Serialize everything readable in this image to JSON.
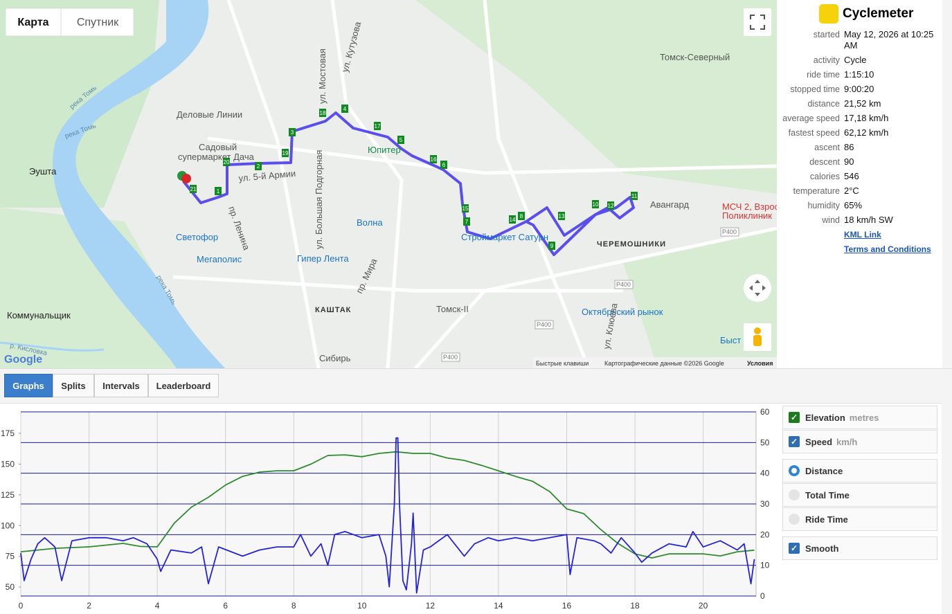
{
  "map": {
    "map_types": [
      "Карта",
      "Спутник"
    ],
    "labels": [
      "Деловые Линии",
      "Садовый",
      "супермаркет Дача",
      "Эушта",
      "Юпитер",
      "Томск-Северный",
      "Авангард",
      "МСЧ 2, Взрос",
      "Поликлиник",
      "Волна",
      "Светофор",
      "Мегаполис",
      "Гипер Лента",
      "Строймаркет Сатурн",
      "ЧЕРЕМОШНИКИ",
      "КАШТАК",
      "Томск-II",
      "Октябрьский рынок",
      "Коммунальщик",
      "Сибирь",
      "Быст",
      "р. Кисловка",
      "река Томь",
      "река Томь",
      "река Томь",
      "ул. Мостовая",
      "ул. Кутузова",
      "ул. Большая Подгорная",
      "пр. Мира",
      "ул. 5-й Армии",
      "пр. Ленина",
      "ул. Клюева",
      "P400",
      "P400",
      "P400",
      "P400",
      "P400"
    ],
    "markers": [
      "18",
      "4",
      "3",
      "17",
      "5",
      "19",
      "16",
      "6",
      "20",
      "2",
      "21",
      "1",
      "15",
      "7",
      "14",
      "8",
      "13",
      "9",
      "10",
      "12",
      "11"
    ],
    "footer": [
      "Google",
      "Быстрые клавиши",
      "Картографические данные ©2026 Google",
      "Условия"
    ]
  },
  "info": {
    "title": "Cyclemeter",
    "rows": [
      [
        "started",
        "May 12, 2026 at 10:25 AM"
      ],
      [
        "activity",
        "Cycle"
      ],
      [
        "ride time",
        "1:15:10"
      ],
      [
        "stopped time",
        "9:00:20"
      ],
      [
        "distance",
        "21,52 km"
      ],
      [
        "average speed",
        "17,18 km/h"
      ],
      [
        "fastest speed",
        "62,12 km/h"
      ],
      [
        "ascent",
        "86"
      ],
      [
        "descent",
        "90"
      ],
      [
        "calories",
        "546"
      ],
      [
        "temperature",
        "2°C"
      ],
      [
        "humidity",
        "65%"
      ],
      [
        "wind",
        "18 km/h SW"
      ]
    ],
    "links": [
      "KML Link",
      "Terms and Conditions"
    ]
  },
  "tabs": [
    "Graphs",
    "Splits",
    "Intervals",
    "Leaderboard"
  ],
  "controls": {
    "units": [
      "metres",
      "km/h"
    ],
    "x_axis_options": [
      "Distance",
      "Total Time",
      "Ride Time"
    ],
    "smooth": "Smooth"
  },
  "chart_data": {
    "type": "line",
    "xlim": [
      0,
      21.55
    ],
    "xticks": [
      0,
      2,
      4,
      6,
      8,
      10,
      12,
      14,
      16,
      18,
      20
    ],
    "ylim": [
      42.7,
      192.5
    ],
    "yticks": [
      50,
      75,
      100,
      125,
      150,
      175
    ],
    "y2lim": [
      0,
      60
    ],
    "y2ticks": [
      0,
      10,
      20,
      30,
      40,
      50,
      60
    ],
    "grid": true,
    "series": [
      {
        "name": "Elevation",
        "color": "#2e8b2e",
        "x": [
          0,
          1,
          2,
          3,
          3.5,
          4,
          4.5,
          5,
          5.5,
          6,
          6.5,
          7,
          7.5,
          8,
          8.5,
          9,
          9.5,
          10,
          10.5,
          11,
          11.5,
          12,
          12.5,
          13,
          13.5,
          14,
          14.5,
          15,
          15.5,
          16,
          16.5,
          17,
          17.5,
          18,
          18.5,
          19,
          19.5,
          20,
          20.5,
          21,
          21.5
        ],
        "values": [
          78.7,
          81.5,
          82.7,
          85.5,
          83,
          82.7,
          102,
          115,
          123,
          133,
          140,
          143.5,
          144.6,
          144.6,
          150,
          157,
          157.5,
          156,
          158.7,
          160,
          158.7,
          158.7,
          155,
          153,
          149,
          144.6,
          140,
          136,
          127.7,
          113.6,
          109.7,
          96.7,
          85.5,
          77,
          73.7,
          77,
          77,
          77,
          75.3,
          78.7,
          80
        ]
      },
      {
        "name": "Speed",
        "color": "#2323dd",
        "axis": "y2",
        "x": [
          0,
          0.1,
          0.3,
          0.5,
          0.7,
          1,
          1.2,
          1.5,
          2,
          2.5,
          3,
          3.3,
          3.7,
          4,
          4.1,
          4.4,
          5,
          5.3,
          5.5,
          5.8,
          6.5,
          7,
          7.5,
          8,
          8.2,
          8.5,
          8.8,
          9,
          9.2,
          9.5,
          10,
          10.5,
          10.7,
          10.8,
          10.95,
          11,
          11.05,
          11.1,
          11.2,
          11.3,
          11.45,
          11.5,
          11.6,
          11.8,
          12,
          12.5,
          13,
          13.3,
          13.7,
          14,
          14.5,
          15,
          15.5,
          16,
          16.1,
          16.3,
          16.8,
          17,
          17.3,
          17.6,
          18,
          18.2,
          18.5,
          19,
          19.5,
          19.7,
          20,
          20.5,
          21,
          21.2,
          21.4,
          21.5
        ],
        "values": [
          14,
          5,
          12,
          17,
          19,
          16,
          5,
          18,
          19,
          19,
          18,
          19,
          17,
          12,
          8,
          15,
          14,
          16,
          4,
          16,
          13,
          15,
          16,
          16,
          20,
          13,
          17,
          10,
          20,
          21,
          19,
          20,
          13,
          3,
          30,
          51.5,
          51.5,
          30,
          5,
          2,
          17,
          27,
          1,
          15,
          16,
          20,
          13,
          17,
          19,
          18,
          19,
          18,
          19,
          20,
          7,
          19,
          18,
          17,
          14,
          19,
          14,
          11,
          14,
          17,
          16,
          21,
          16,
          18,
          15,
          17,
          4,
          12
        ]
      }
    ]
  }
}
